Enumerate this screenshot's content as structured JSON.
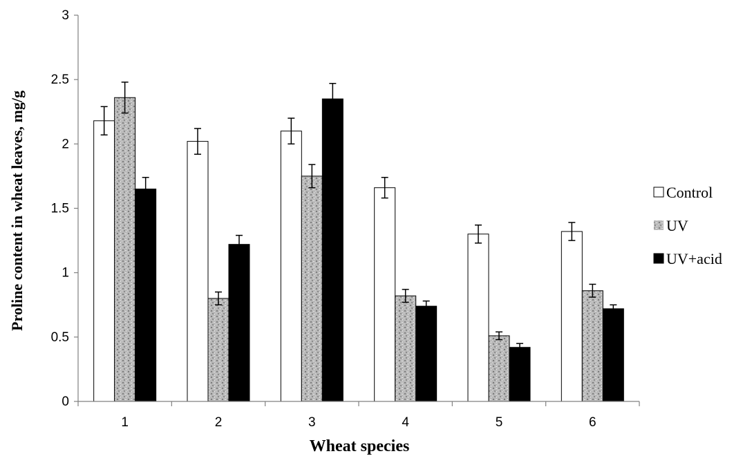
{
  "chart_data": {
    "type": "bar",
    "categories": [
      "1",
      "2",
      "3",
      "4",
      "5",
      "6"
    ],
    "series": [
      {
        "name": "Control",
        "values": [
          2.18,
          2.02,
          2.1,
          1.66,
          1.3,
          1.32
        ],
        "errors": [
          0.11,
          0.1,
          0.1,
          0.08,
          0.07,
          0.07
        ],
        "fill": "#ffffff"
      },
      {
        "name": "UV",
        "values": [
          2.36,
          0.8,
          1.75,
          0.82,
          0.51,
          0.86
        ],
        "errors": [
          0.12,
          0.05,
          0.09,
          0.05,
          0.03,
          0.05
        ],
        "fill": "#b3b3b3"
      },
      {
        "name": "UV+acid",
        "values": [
          1.65,
          1.22,
          2.35,
          0.74,
          0.42,
          0.72
        ],
        "errors": [
          0.09,
          0.07,
          0.12,
          0.04,
          0.03,
          0.03
        ],
        "fill": "#000000"
      }
    ],
    "xlabel": "Wheat species",
    "ylabel": "Proline content in wheat leaves, mg/g",
    "ylim": [
      0,
      3
    ],
    "yticks": [
      "0",
      "0.5",
      "1",
      "1.5",
      "2",
      "2.5",
      "3"
    ],
    "grid": false,
    "legend_position": "right"
  }
}
